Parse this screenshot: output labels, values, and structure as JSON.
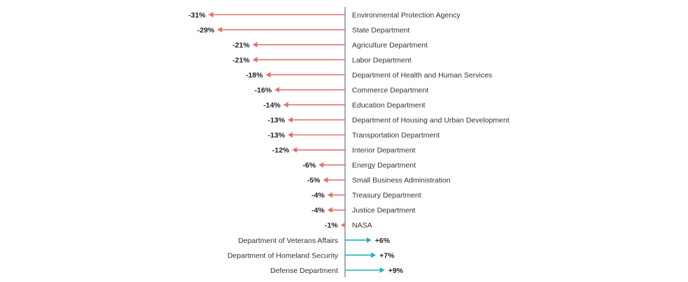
{
  "chart_data": {
    "type": "bar",
    "orientation": "horizontal-arrows",
    "title": "",
    "xlabel": "",
    "ylabel": "",
    "unit": "%",
    "xlim": [
      -31,
      9
    ],
    "grid": false,
    "categories": [
      "Environmental Protection Agency",
      "State Department",
      "Agriculture Department",
      "Labor Department",
      "Department of Health and Human Services",
      "Commerce Department",
      "Education Department",
      "Department of Housing and Urban Development",
      "Transportation Department",
      "Interior Department",
      "Energy Department",
      "Small Business Administration",
      "Treasury Department",
      "Justice Department",
      "NASA",
      "Department of Veterans Affairs",
      "Department of Homeland Security",
      "Defense Department"
    ],
    "values": [
      -31,
      -29,
      -21,
      -21,
      -18,
      -16,
      -14,
      -13,
      -13,
      -12,
      -6,
      -5,
      -4,
      -4,
      -1,
      6,
      7,
      9
    ],
    "value_labels": [
      "-31%",
      "-29%",
      "-21%",
      "-21%",
      "-18%",
      "-16%",
      "-14%",
      "-13%",
      "-13%",
      "-12%",
      "-6%",
      "-5%",
      "-4%",
      "-4%",
      "-1%",
      "+6%",
      "+7%",
      "+9%"
    ],
    "colors": {
      "negative": "#de7470",
      "positive": "#25b0b6",
      "axis": "#555555"
    }
  }
}
